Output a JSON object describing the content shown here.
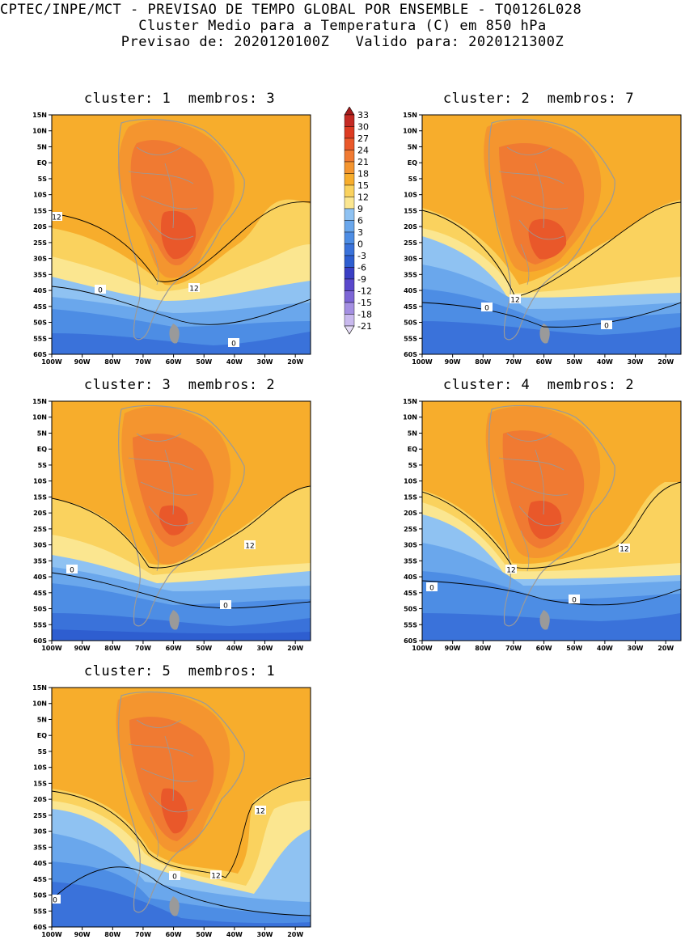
{
  "header": {
    "line1": "CPTEC/INPE/MCT - PREVISAO DE TEMPO GLOBAL POR ENSEMBLE - TQ0126L028",
    "line2": "Cluster Medio para a Temperatura (C) em 850 hPa",
    "line3": "Previsao de: 2020120100Z   Valido para: 2020121300Z"
  },
  "panels": [
    {
      "title": "cluster: 1  membros: 3",
      "labels_12": [
        "12",
        "12"
      ],
      "labels_0": [
        "0",
        "0"
      ]
    },
    {
      "title": "cluster: 2  membros: 7",
      "labels_12": [
        "12"
      ],
      "labels_0": [
        "0",
        "0"
      ]
    },
    {
      "title": "cluster: 3  membros: 2",
      "labels_12": [
        "12"
      ],
      "labels_0": [
        "0",
        "0"
      ]
    },
    {
      "title": "cluster: 4  membros: 2",
      "labels_12": [
        "12",
        "12"
      ],
      "labels_0": [
        "0",
        "0"
      ]
    },
    {
      "title": "cluster: 5  membros: 1",
      "labels_12": [
        "12",
        "12"
      ],
      "labels_0": [
        "0",
        "0"
      ]
    }
  ],
  "axes": {
    "lat_ticks": [
      "15N",
      "10N",
      "5N",
      "EQ",
      "5S",
      "10S",
      "15S",
      "20S",
      "25S",
      "30S",
      "35S",
      "40S",
      "45S",
      "50S",
      "55S",
      "60S"
    ],
    "lon_ticks": [
      "100W",
      "90W",
      "80W",
      "70W",
      "60W",
      "50W",
      "40W",
      "30W",
      "20W"
    ]
  },
  "colorbar": {
    "labels": [
      "33",
      "30",
      "27",
      "24",
      "21",
      "18",
      "15",
      "12",
      "9",
      "6",
      "3",
      "0",
      "-3",
      "-6",
      "-9",
      "-12",
      "-15",
      "-18",
      "-21"
    ],
    "colors": [
      "#a51c1c",
      "#c42a24",
      "#dc3b22",
      "#e9582a",
      "#f07a32",
      "#f4952f",
      "#f7ad2c",
      "#fad25e",
      "#fbe690",
      "#8fc2f2",
      "#6aa7ec",
      "#4d8de4",
      "#3a72da",
      "#2e5ed0",
      "#3a3fc4",
      "#5a48cc",
      "#7d66d6",
      "#a48fe2",
      "#c9b9ee",
      "#e6ddf6"
    ]
  },
  "colors": {
    "land_outline": "#9a9a9a",
    "contour": "#000000"
  }
}
